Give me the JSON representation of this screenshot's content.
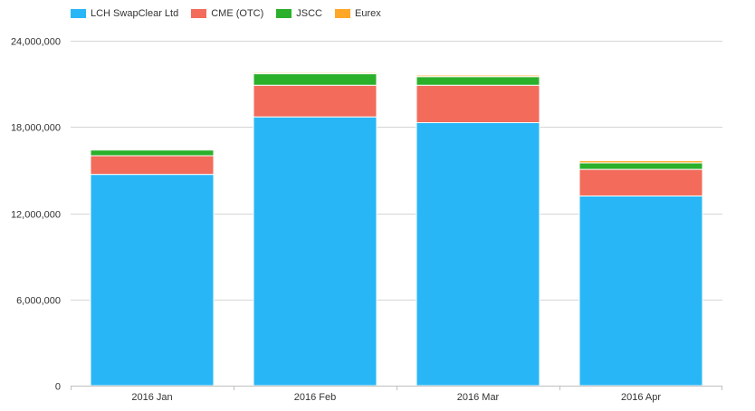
{
  "chart_data": {
    "type": "bar",
    "stacked": true,
    "title": "",
    "xlabel": "",
    "ylabel": "",
    "categories": [
      "2016 Jan",
      "2016 Feb",
      "2016 Mar",
      "2016 Apr"
    ],
    "ylim": [
      0,
      24000000
    ],
    "yticks": [
      0,
      6000000,
      12000000,
      18000000,
      24000000
    ],
    "ytick_labels": [
      "0",
      "6,000,000",
      "12,000,000",
      "18,000,000",
      "24,000,000"
    ],
    "grid": true,
    "legend_position": "top-left",
    "series": [
      {
        "name": "LCH SwapClear Ltd",
        "color": "#29b6f6",
        "values": [
          14700000,
          18700000,
          18300000,
          13200000
        ]
      },
      {
        "name": "CME (OTC)",
        "color": "#f26b5b",
        "values": [
          1300000,
          2200000,
          2600000,
          1850000
        ]
      },
      {
        "name": "JSCC",
        "color": "#2bb02b",
        "values": [
          400000,
          800000,
          600000,
          450000
        ]
      },
      {
        "name": "Eurex",
        "color": "#ffa726",
        "values": [
          50000,
          80000,
          100000,
          150000
        ]
      }
    ]
  }
}
